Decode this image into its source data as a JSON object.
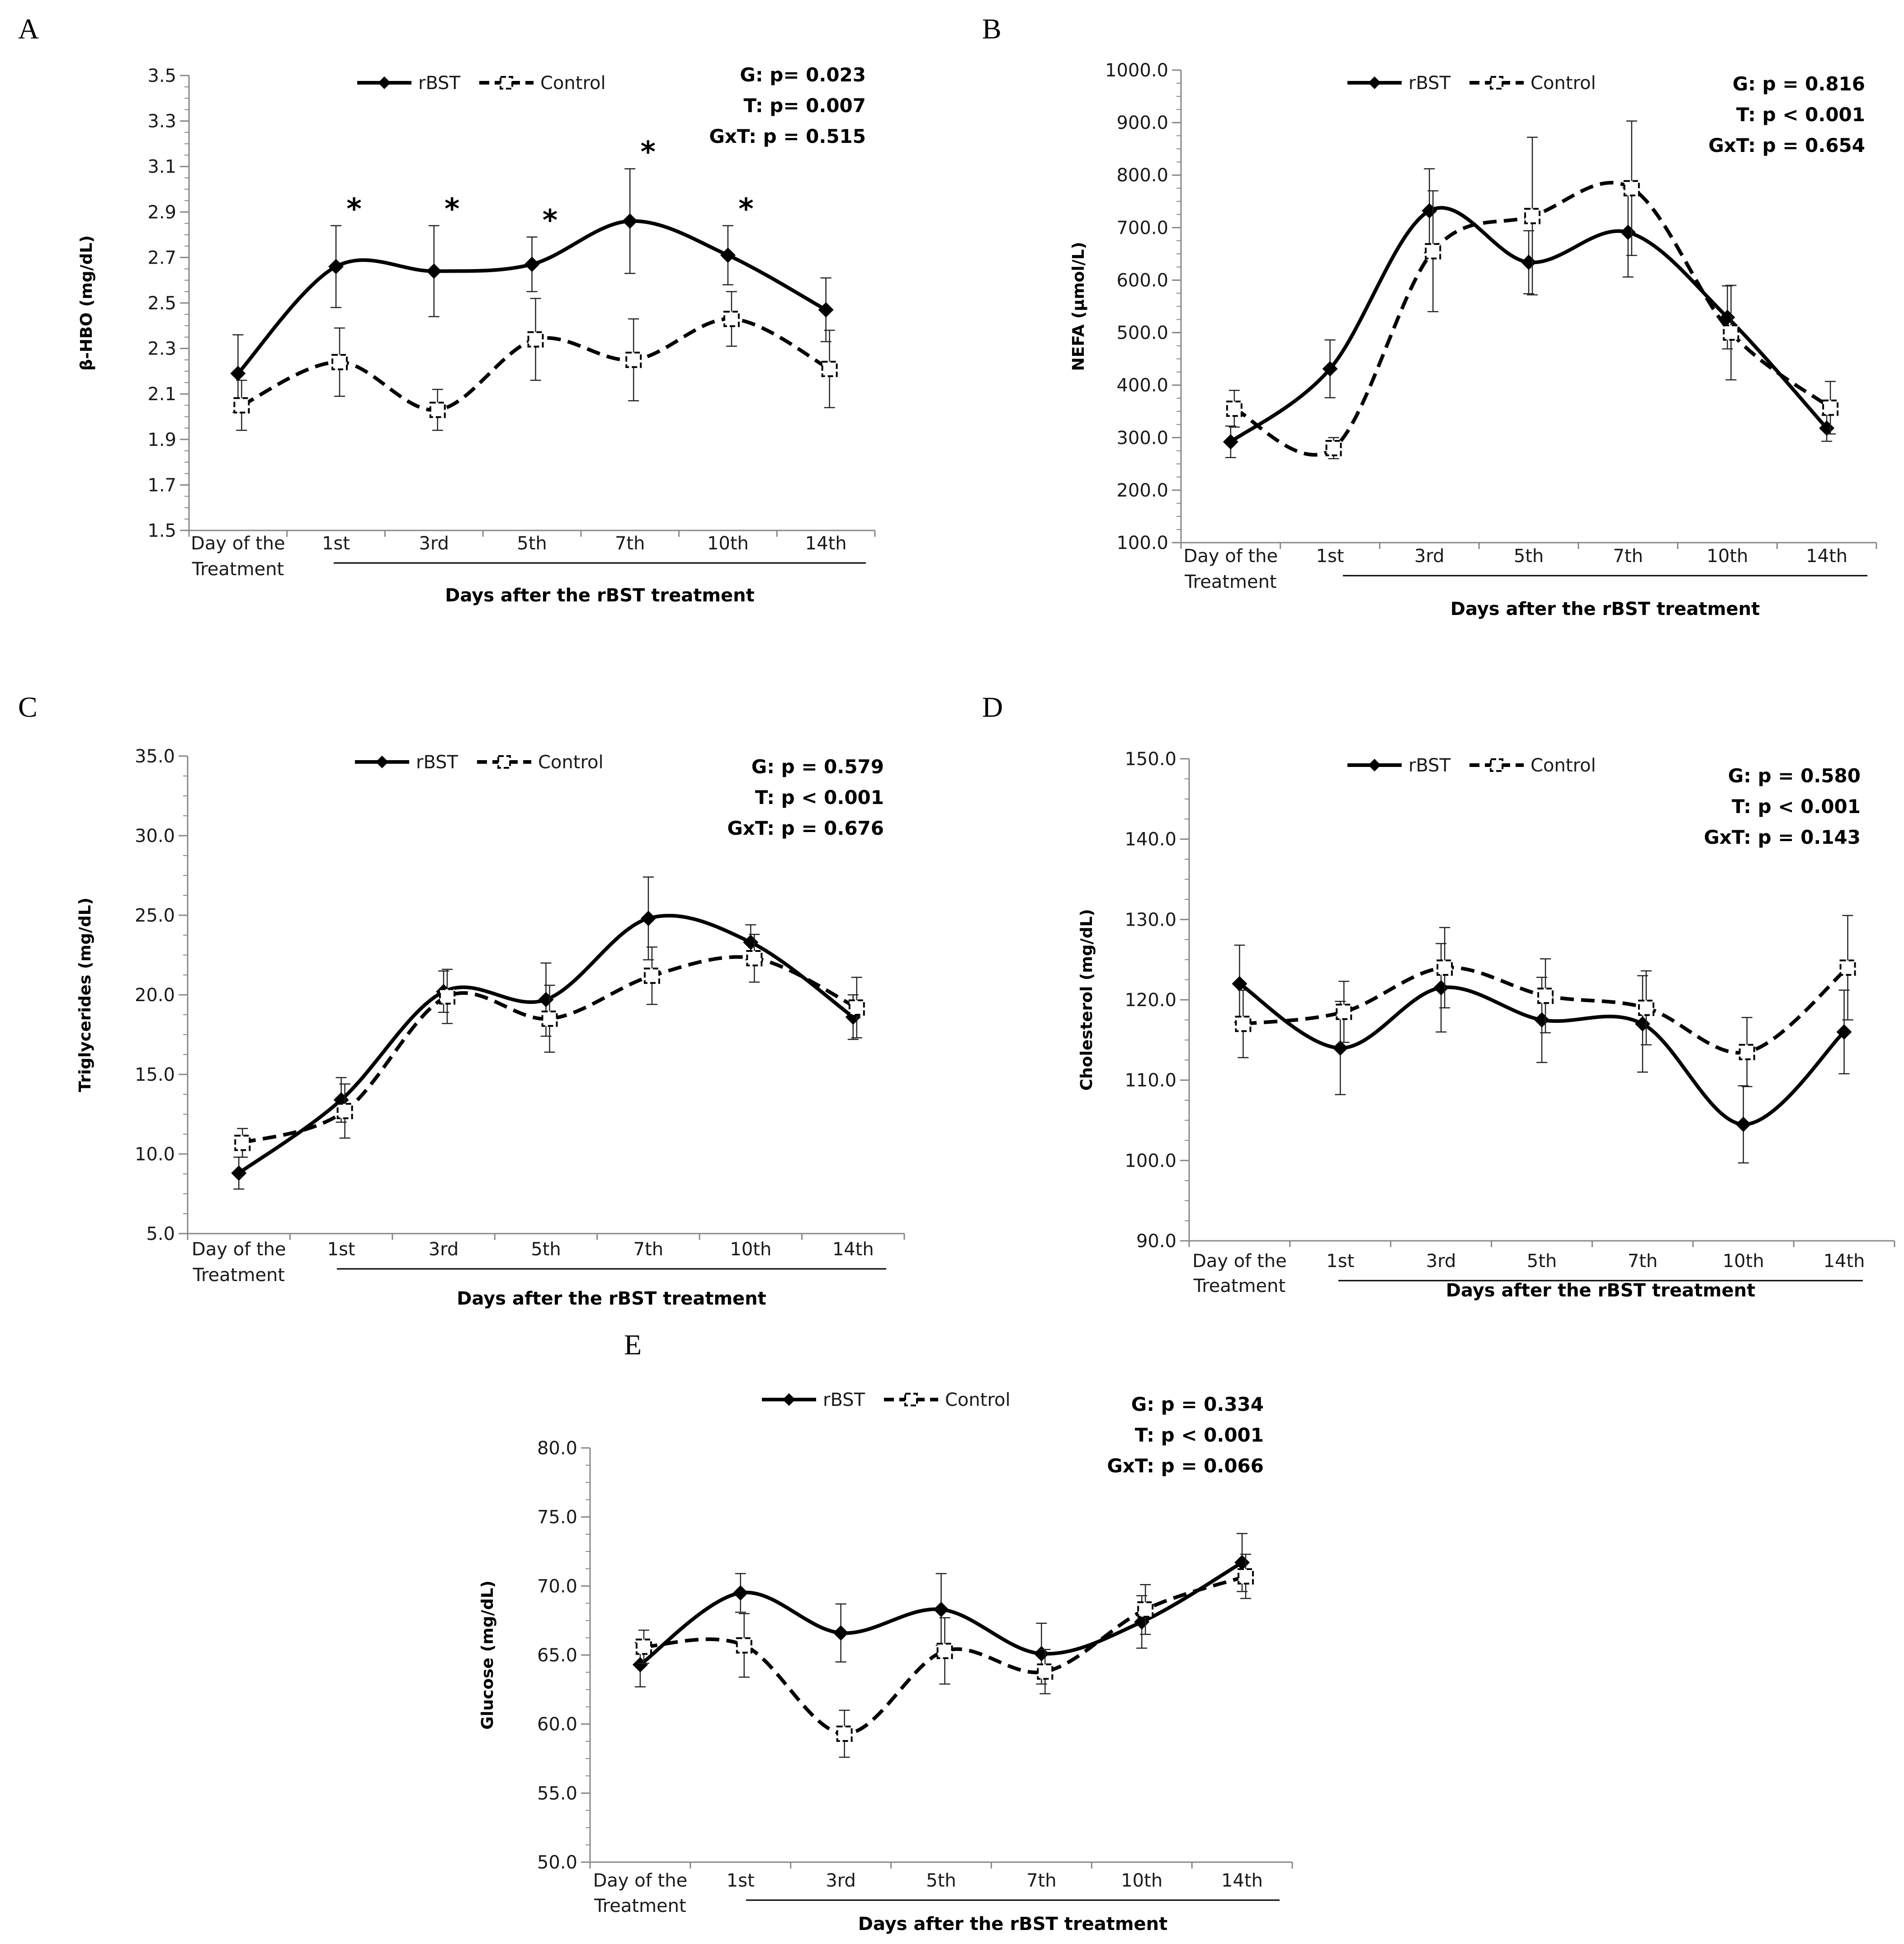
{
  "chart_data": [
    {
      "panel": "A",
      "type": "line",
      "ylabel": "β-HBO (mg/dL)",
      "xlabel": "Days after the rBST treatment",
      "categories": [
        "Day of the\nTreatment",
        "1st",
        "3rd",
        "5th",
        "7th",
        "10th",
        "14th"
      ],
      "ylim": [
        1.5,
        3.5
      ],
      "yticks": [
        1.5,
        1.7,
        1.9,
        2.1,
        2.3,
        2.5,
        2.7,
        2.9,
        3.1,
        3.3,
        3.5
      ],
      "ytick_labels": [
        "1.5",
        "1.7",
        "1.9",
        "2.1",
        "2.3",
        "2.5",
        "2.7",
        "2.9",
        "3.1",
        "3.3",
        "3.5"
      ],
      "legend": [
        "rBST",
        "Control"
      ],
      "stats": [
        "G: p= 0.023",
        "T:  p= 0.007",
        "GxT: p = 0.515"
      ],
      "significance": [
        1,
        2,
        3,
        4,
        5
      ],
      "significance_label": "*",
      "series": [
        {
          "name": "rBST",
          "values": [
            2.19,
            2.66,
            2.64,
            2.67,
            2.86,
            2.71,
            2.47
          ],
          "err": [
            0.17,
            0.18,
            0.2,
            0.12,
            0.23,
            0.13,
            0.14
          ]
        },
        {
          "name": "Control",
          "values": [
            2.05,
            2.24,
            2.03,
            2.34,
            2.25,
            2.43,
            2.21
          ],
          "err": [
            0.11,
            0.15,
            0.09,
            0.18,
            0.18,
            0.12,
            0.17
          ]
        }
      ]
    },
    {
      "panel": "B",
      "type": "line",
      "ylabel": "NEFA (µmol/L)",
      "xlabel": "Days after the rBST treatment",
      "categories": [
        "Day of the\nTreatment",
        "1st",
        "3rd",
        "5th",
        "7th",
        "10th",
        "14th"
      ],
      "ylim": [
        100,
        1000
      ],
      "yticks": [
        100,
        200,
        300,
        400,
        500,
        600,
        700,
        800,
        900,
        1000
      ],
      "ytick_labels": [
        "100.0",
        "200.0",
        "300.0",
        "400.0",
        "500.0",
        "600.0",
        "700.0",
        "800.0",
        "900.0",
        "1000.0"
      ],
      "legend": [
        "rBST",
        "Control"
      ],
      "stats": [
        "G: p = 0.816",
        "T: p < 0.001",
        "GxT: p = 0.654"
      ],
      "series": [
        {
          "name": "rBST",
          "values": [
            292,
            431,
            732,
            634,
            691,
            529,
            318
          ],
          "err": [
            30,
            55,
            80,
            60,
            85,
            60,
            25
          ]
        },
        {
          "name": "Control",
          "values": [
            355,
            280,
            655,
            722,
            775,
            500,
            357
          ],
          "err": [
            35,
            20,
            115,
            150,
            128,
            90,
            50
          ]
        }
      ]
    },
    {
      "panel": "C",
      "type": "line",
      "ylabel": "Triglycerides (mg/dL)",
      "xlabel": "Days after the rBST treatment",
      "categories": [
        "Day of the\nTreatment",
        "1st",
        "3rd",
        "5th",
        "7th",
        "10th",
        "14th"
      ],
      "ylim": [
        5,
        35
      ],
      "yticks": [
        5,
        10,
        15,
        20,
        25,
        30,
        35
      ],
      "ytick_labels": [
        "5.0",
        "10.0",
        "15.0",
        "20.0",
        "25.0",
        "30.0",
        "35.0"
      ],
      "legend": [
        "rBST",
        "Control"
      ],
      "stats": [
        "G: p = 0.579",
        "T: p < 0.001",
        "GxT: p = 0.676"
      ],
      "series": [
        {
          "name": "rBST",
          "values": [
            8.8,
            13.4,
            20.2,
            19.7,
            24.8,
            23.3,
            18.6
          ],
          "err": [
            1.0,
            1.4,
            1.3,
            2.3,
            2.6,
            1.1,
            1.4
          ]
        },
        {
          "name": "Control",
          "values": [
            10.7,
            12.7,
            19.9,
            18.5,
            21.2,
            22.3,
            19.2
          ],
          "err": [
            0.9,
            1.7,
            1.7,
            2.1,
            1.8,
            1.5,
            1.9
          ]
        }
      ]
    },
    {
      "panel": "D",
      "type": "line",
      "ylabel": "Cholesterol (mg/dL)",
      "xlabel": "Days after the rBST treatment",
      "categories": [
        "Day of the\nTreatment",
        "1st",
        "3rd",
        "5th",
        "7th",
        "10th",
        "14th"
      ],
      "ylim": [
        90,
        150
      ],
      "yticks": [
        90,
        100,
        110,
        120,
        130,
        140,
        150
      ],
      "ytick_labels": [
        "90.0",
        "100.0",
        "110.0",
        "120.0",
        "130.0",
        "140.0",
        "150.0"
      ],
      "legend": [
        "rBST",
        "Control"
      ],
      "stats": [
        "G: p = 0.580",
        "T: p < 0.001",
        "GxT: p = 0.143"
      ],
      "series": [
        {
          "name": "rBST",
          "values": [
            122,
            114,
            121.5,
            117.5,
            117,
            104.5,
            116
          ],
          "err": [
            4.8,
            5.8,
            5.5,
            5.3,
            6.0,
            4.8,
            5.2
          ]
        },
        {
          "name": "Control",
          "values": [
            117,
            118.5,
            124,
            120.5,
            119,
            113.5,
            124
          ],
          "err": [
            4.2,
            3.8,
            5.0,
            4.6,
            4.6,
            4.3,
            6.5
          ]
        }
      ]
    },
    {
      "panel": "E",
      "type": "line",
      "ylabel": "Glucose (mg/dL)",
      "xlabel": "Days after the rBST treatment",
      "categories": [
        "Day of the\nTreatment",
        "1st",
        "3rd",
        "5th",
        "7th",
        "10th",
        "14th"
      ],
      "ylim": [
        50,
        80
      ],
      "yticks": [
        50,
        55,
        60,
        65,
        70,
        75,
        80
      ],
      "ytick_labels": [
        "50.0",
        "55.0",
        "60.0",
        "65.0",
        "70.0",
        "75.0",
        "80.0"
      ],
      "legend": [
        "rBST",
        "Control"
      ],
      "stats": [
        "G: p = 0.334",
        "T: p < 0.001",
        "GxT: p = 0.066"
      ],
      "series": [
        {
          "name": "rBST",
          "values": [
            64.3,
            69.5,
            66.6,
            68.3,
            65.1,
            67.4,
            71.7
          ],
          "err": [
            1.6,
            1.4,
            2.1,
            2.6,
            2.2,
            1.9,
            2.1
          ]
        },
        {
          "name": "Control",
          "values": [
            65.6,
            65.7,
            59.3,
            65.3,
            63.8,
            68.3,
            70.7
          ],
          "err": [
            1.2,
            2.3,
            1.7,
            2.4,
            1.6,
            1.8,
            1.6
          ]
        }
      ]
    }
  ]
}
